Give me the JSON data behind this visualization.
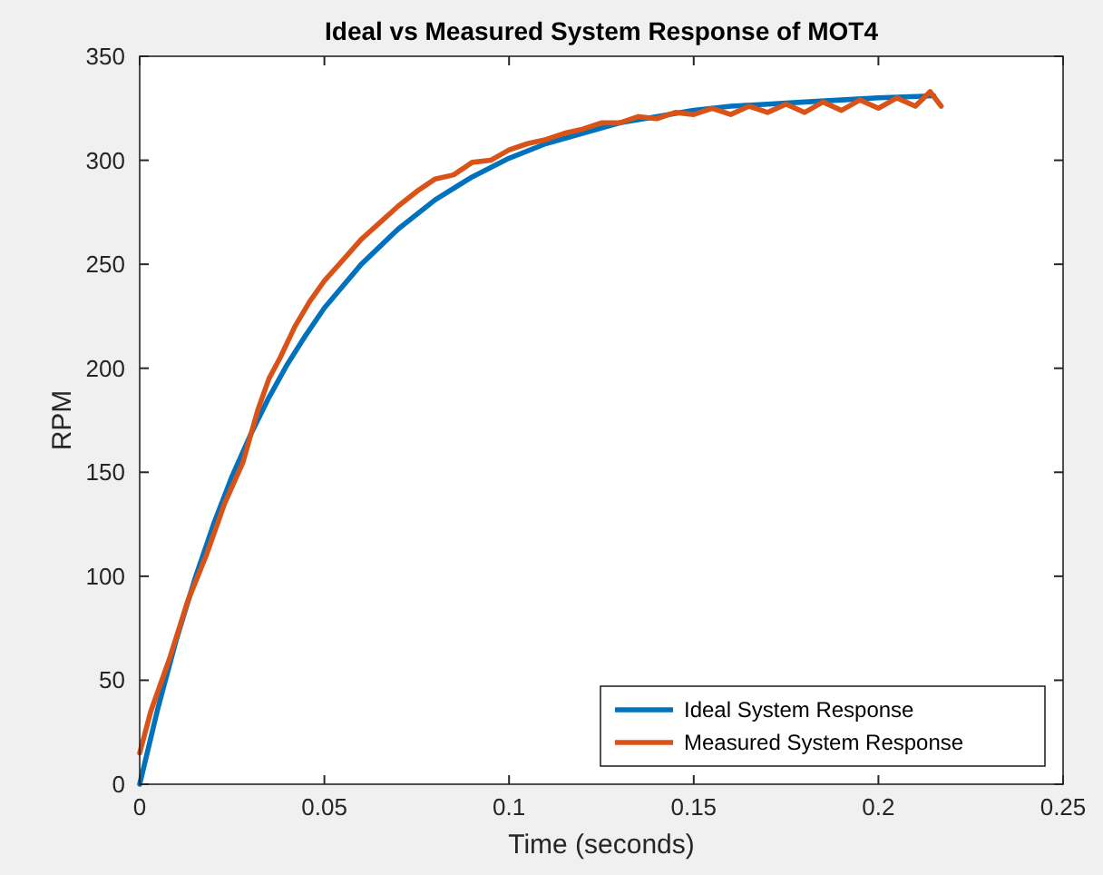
{
  "chart_data": {
    "type": "line",
    "title": "Ideal vs Measured System Response of MOT4",
    "xlabel": "Time (seconds)",
    "ylabel": "RPM",
    "xlim": [
      0,
      0.25
    ],
    "xticks": [
      0,
      0.05,
      0.1,
      0.15,
      0.2,
      0.25
    ],
    "ylim": [
      0,
      350
    ],
    "yticks": [
      0,
      50,
      100,
      150,
      200,
      250,
      300,
      350
    ],
    "grid": false,
    "legend": "bottom right",
    "line_style": "solid",
    "marker": "none",
    "series": [
      {
        "name": "Ideal System Response",
        "color": "#0072bd",
        "x": [
          0,
          0.005,
          0.01,
          0.015,
          0.02,
          0.025,
          0.03,
          0.035,
          0.04,
          0.045,
          0.05,
          0.06,
          0.07,
          0.08,
          0.09,
          0.1,
          0.11,
          0.12,
          0.13,
          0.14,
          0.15,
          0.16,
          0.17,
          0.18,
          0.19,
          0.2,
          0.215
        ],
        "values": [
          0,
          37,
          70,
          99,
          125,
          148,
          168,
          186,
          202,
          216,
          229,
          250,
          267,
          281,
          292,
          301,
          308,
          313,
          318,
          321,
          324,
          326,
          327,
          328,
          329,
          330,
          331
        ]
      },
      {
        "name": "Measured System Response",
        "color": "#d95319",
        "x": [
          0,
          0.003,
          0.008,
          0.013,
          0.018,
          0.023,
          0.028,
          0.032,
          0.035,
          0.038,
          0.042,
          0.046,
          0.05,
          0.055,
          0.06,
          0.065,
          0.07,
          0.075,
          0.08,
          0.085,
          0.09,
          0.095,
          0.1,
          0.105,
          0.11,
          0.115,
          0.12,
          0.125,
          0.13,
          0.135,
          0.14,
          0.145,
          0.15,
          0.155,
          0.16,
          0.165,
          0.17,
          0.175,
          0.18,
          0.185,
          0.19,
          0.195,
          0.2,
          0.205,
          0.21,
          0.214,
          0.217
        ],
        "values": [
          15,
          35,
          60,
          88,
          110,
          135,
          155,
          180,
          195,
          205,
          220,
          232,
          242,
          252,
          262,
          270,
          278,
          285,
          291,
          293,
          299,
          300,
          305,
          308,
          310,
          313,
          315,
          318,
          318,
          321,
          320,
          323,
          322,
          325,
          322,
          326,
          323,
          327,
          323,
          328,
          324,
          329,
          325,
          330,
          326,
          333,
          326
        ]
      }
    ]
  }
}
